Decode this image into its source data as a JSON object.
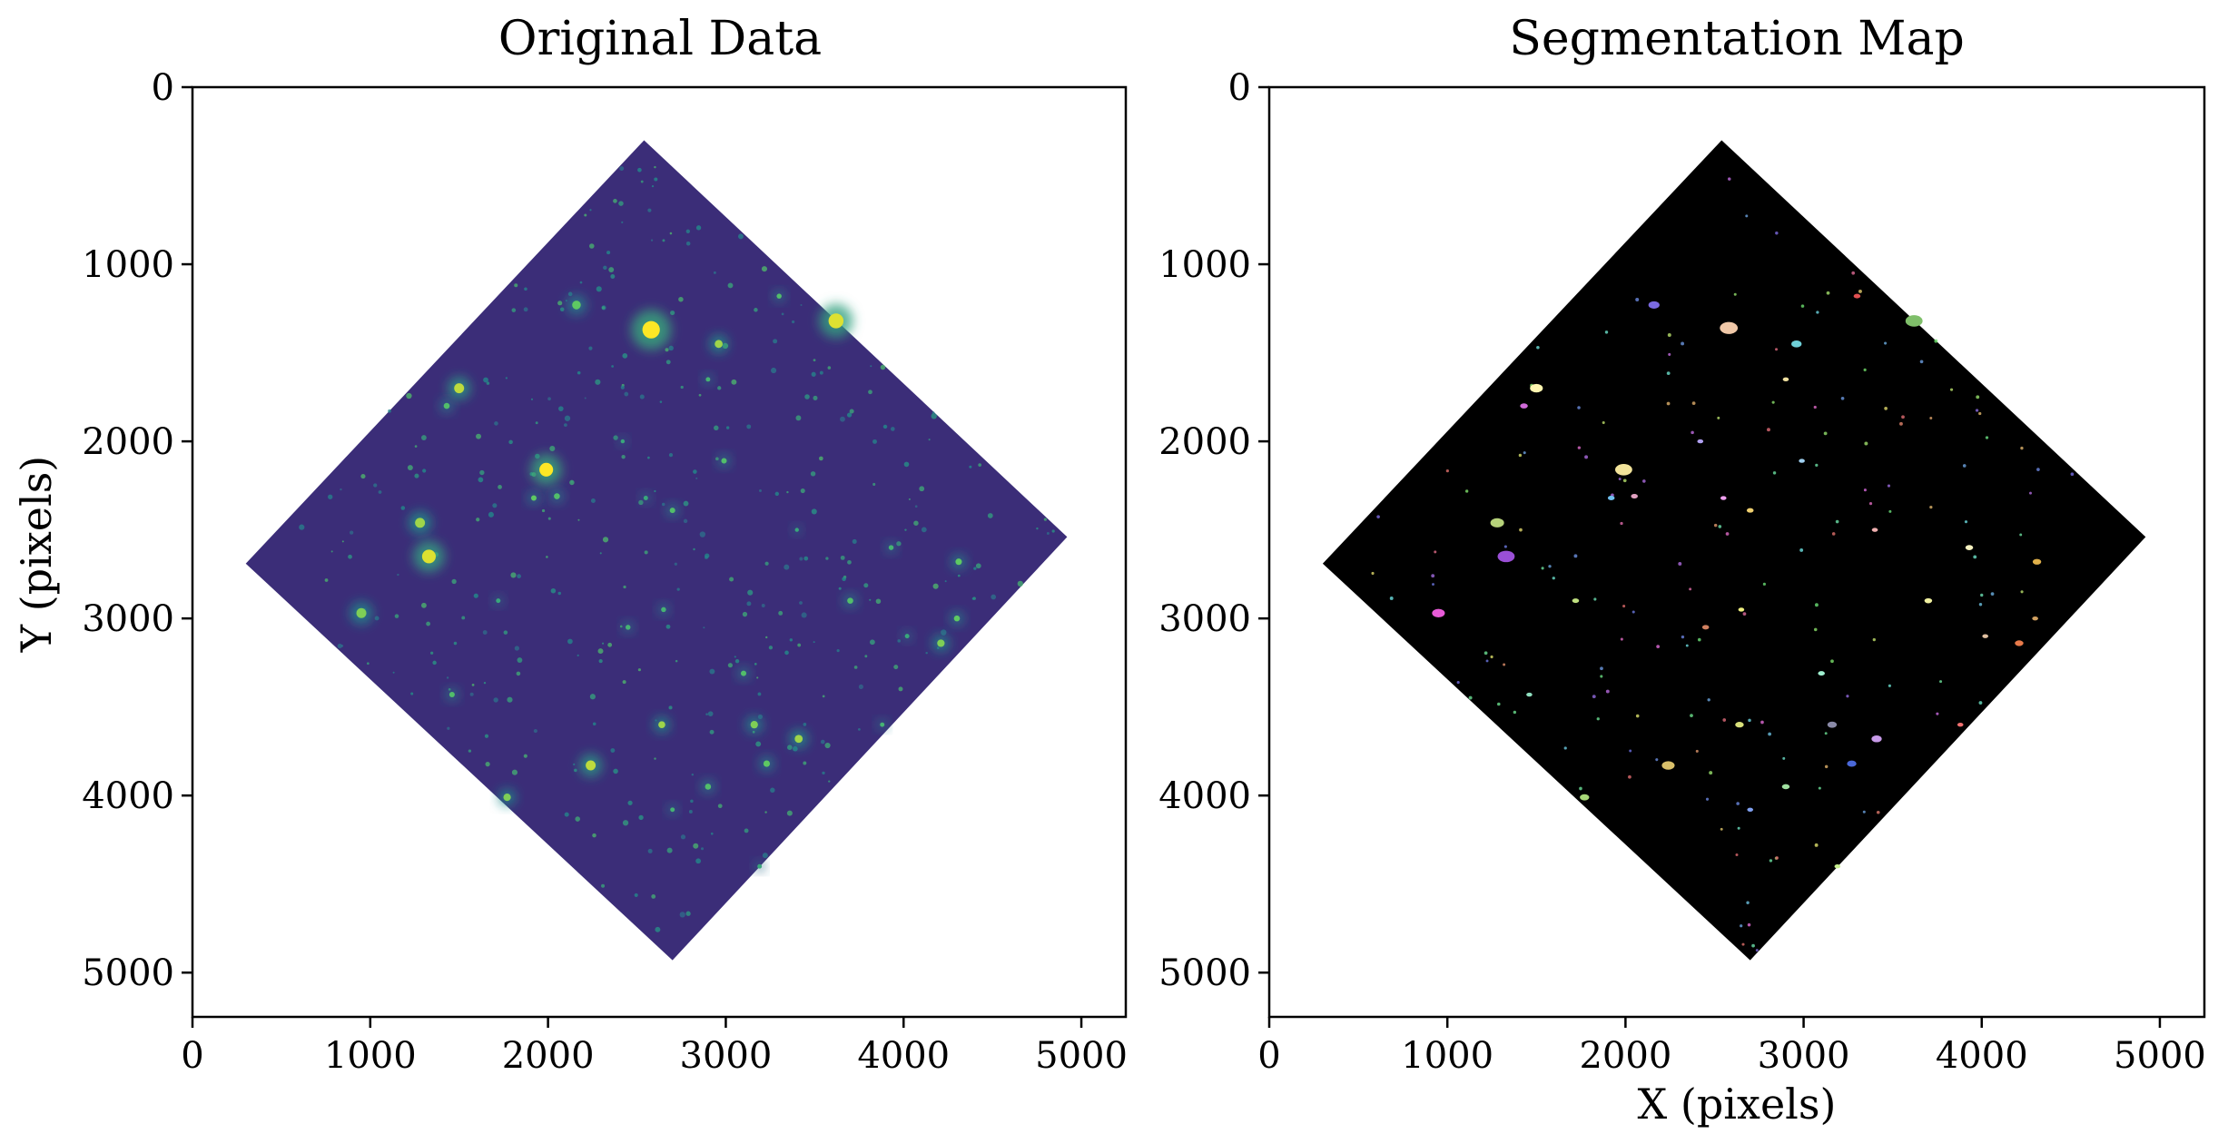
{
  "chart_data": [
    {
      "type": "image",
      "title": "Original Data",
      "xlabel": "",
      "ylabel": "Y (pixels)",
      "xlim": [
        0,
        5250
      ],
      "ylim": [
        5250,
        0
      ],
      "xticks": [
        0,
        1000,
        2000,
        3000,
        4000,
        5000
      ],
      "yticks": [
        0,
        1000,
        2000,
        3000,
        4000,
        5000
      ],
      "colormap": "viridis",
      "background_color": "#3b2d78",
      "footprint": [
        [
          2540,
          300
        ],
        [
          4920,
          2540
        ],
        [
          2700,
          4930
        ],
        [
          300,
          2690
        ]
      ],
      "sources": [
        {
          "x": 2580,
          "y": 1370,
          "r": 70,
          "v": 1.0
        },
        {
          "x": 3620,
          "y": 1320,
          "r": 60,
          "v": 0.95
        },
        {
          "x": 1990,
          "y": 2160,
          "r": 55,
          "v": 1.0
        },
        {
          "x": 1330,
          "y": 2650,
          "r": 55,
          "v": 0.95
        },
        {
          "x": 1280,
          "y": 2460,
          "r": 40,
          "v": 0.85
        },
        {
          "x": 1500,
          "y": 1700,
          "r": 40,
          "v": 0.9
        },
        {
          "x": 2240,
          "y": 3830,
          "r": 40,
          "v": 0.9
        },
        {
          "x": 950,
          "y": 2970,
          "r": 40,
          "v": 0.8
        },
        {
          "x": 2160,
          "y": 1230,
          "r": 35,
          "v": 0.75
        },
        {
          "x": 2960,
          "y": 1450,
          "r": 32,
          "v": 0.85
        },
        {
          "x": 3410,
          "y": 3680,
          "r": 32,
          "v": 0.85
        },
        {
          "x": 3160,
          "y": 3600,
          "r": 30,
          "v": 0.8
        },
        {
          "x": 2640,
          "y": 3600,
          "r": 28,
          "v": 0.85
        },
        {
          "x": 1770,
          "y": 4010,
          "r": 30,
          "v": 0.8
        },
        {
          "x": 4210,
          "y": 3140,
          "r": 30,
          "v": 0.8
        },
        {
          "x": 3230,
          "y": 3820,
          "r": 26,
          "v": 0.75
        },
        {
          "x": 4310,
          "y": 2680,
          "r": 26,
          "v": 0.75
        },
        {
          "x": 4300,
          "y": 3000,
          "r": 24,
          "v": 0.75
        },
        {
          "x": 3700,
          "y": 2900,
          "r": 24,
          "v": 0.7
        },
        {
          "x": 1430,
          "y": 1800,
          "r": 24,
          "v": 0.7
        },
        {
          "x": 2900,
          "y": 3950,
          "r": 24,
          "v": 0.7
        },
        {
          "x": 2050,
          "y": 2310,
          "r": 24,
          "v": 0.7
        },
        {
          "x": 1920,
          "y": 2320,
          "r": 22,
          "v": 0.75
        },
        {
          "x": 1460,
          "y": 3430,
          "r": 22,
          "v": 0.7
        },
        {
          "x": 2990,
          "y": 2110,
          "r": 22,
          "v": 0.7
        },
        {
          "x": 2700,
          "y": 2390,
          "r": 22,
          "v": 0.7
        },
        {
          "x": 3100,
          "y": 3310,
          "r": 22,
          "v": 0.7
        },
        {
          "x": 2650,
          "y": 2950,
          "r": 20,
          "v": 0.65
        },
        {
          "x": 3930,
          "y": 2600,
          "r": 20,
          "v": 0.65
        },
        {
          "x": 2450,
          "y": 3050,
          "r": 20,
          "v": 0.65
        },
        {
          "x": 3300,
          "y": 1180,
          "r": 20,
          "v": 0.7
        },
        {
          "x": 3880,
          "y": 3600,
          "r": 18,
          "v": 0.65
        },
        {
          "x": 2700,
          "y": 4080,
          "r": 18,
          "v": 0.65
        },
        {
          "x": 2900,
          "y": 1650,
          "r": 18,
          "v": 0.65
        },
        {
          "x": 1720,
          "y": 2900,
          "r": 18,
          "v": 0.6
        },
        {
          "x": 4020,
          "y": 3100,
          "r": 18,
          "v": 0.6
        },
        {
          "x": 3190,
          "y": 4400,
          "r": 18,
          "v": 0.6
        },
        {
          "x": 2550,
          "y": 2320,
          "r": 18,
          "v": 0.6
        },
        {
          "x": 2420,
          "y": 2000,
          "r": 16,
          "v": 0.6
        },
        {
          "x": 3400,
          "y": 2500,
          "r": 16,
          "v": 0.6
        }
      ]
    },
    {
      "type": "image",
      "title": "Segmentation Map",
      "xlabel": "X (pixels)",
      "ylabel": "",
      "xlim": [
        0,
        5250
      ],
      "ylim": [
        5250,
        0
      ],
      "xticks": [
        0,
        1000,
        2000,
        3000,
        4000,
        5000
      ],
      "yticks": [
        0,
        1000,
        2000,
        3000,
        4000,
        5000
      ],
      "colormap": "random",
      "background_color": "#000000",
      "footprint": [
        [
          2540,
          300
        ],
        [
          4920,
          2540
        ],
        [
          2700,
          4930
        ],
        [
          300,
          2690
        ]
      ],
      "segments": [
        {
          "x": 2580,
          "y": 1360,
          "r": 42,
          "color": "#f0c8a8"
        },
        {
          "x": 3620,
          "y": 1320,
          "r": 40,
          "color": "#7fbf6a"
        },
        {
          "x": 1990,
          "y": 2160,
          "r": 40,
          "color": "#f2e39a"
        },
        {
          "x": 1330,
          "y": 2650,
          "r": 40,
          "color": "#9a4fd6"
        },
        {
          "x": 1280,
          "y": 2460,
          "r": 32,
          "color": "#b6d27a"
        },
        {
          "x": 1500,
          "y": 1700,
          "r": 30,
          "color": "#fff6b0"
        },
        {
          "x": 2240,
          "y": 3830,
          "r": 30,
          "color": "#d9c06a"
        },
        {
          "x": 950,
          "y": 2970,
          "r": 30,
          "color": "#e85bd8"
        },
        {
          "x": 2160,
          "y": 1230,
          "r": 26,
          "color": "#7a6ae0"
        },
        {
          "x": 2960,
          "y": 1450,
          "r": 24,
          "color": "#6fd0d8"
        },
        {
          "x": 3410,
          "y": 3680,
          "r": 24,
          "color": "#c79ae8"
        },
        {
          "x": 3160,
          "y": 3600,
          "r": 22,
          "color": "#8a8aa8"
        },
        {
          "x": 3270,
          "y": 3820,
          "r": 22,
          "color": "#4a68d8"
        },
        {
          "x": 1770,
          "y": 4010,
          "r": 22,
          "color": "#a8d878"
        },
        {
          "x": 4210,
          "y": 3140,
          "r": 20,
          "color": "#e87a4a"
        },
        {
          "x": 4310,
          "y": 2680,
          "r": 20,
          "color": "#e0b04a"
        },
        {
          "x": 2640,
          "y": 3600,
          "r": 20,
          "color": "#d8e07a"
        },
        {
          "x": 3700,
          "y": 2900,
          "r": 18,
          "color": "#f0f0a0"
        },
        {
          "x": 1430,
          "y": 1800,
          "r": 18,
          "color": "#d06ad8"
        },
        {
          "x": 3930,
          "y": 2600,
          "r": 18,
          "color": "#f6f2c0"
        },
        {
          "x": 2900,
          "y": 3950,
          "r": 18,
          "color": "#a0e0a0"
        },
        {
          "x": 3300,
          "y": 1180,
          "r": 16,
          "color": "#e05050"
        },
        {
          "x": 1720,
          "y": 2900,
          "r": 16,
          "color": "#c0e080"
        },
        {
          "x": 2050,
          "y": 2310,
          "r": 16,
          "color": "#e0a0c0"
        },
        {
          "x": 1920,
          "y": 2320,
          "r": 16,
          "color": "#70c0f0"
        },
        {
          "x": 2700,
          "y": 2390,
          "r": 16,
          "color": "#f0d070"
        },
        {
          "x": 3100,
          "y": 3310,
          "r": 16,
          "color": "#a0f0d0"
        },
        {
          "x": 2450,
          "y": 3050,
          "r": 16,
          "color": "#d08060"
        },
        {
          "x": 3880,
          "y": 3600,
          "r": 14,
          "color": "#f07070"
        },
        {
          "x": 2700,
          "y": 4080,
          "r": 14,
          "color": "#80a0f0"
        },
        {
          "x": 3190,
          "y": 4400,
          "r": 14,
          "color": "#c8f090"
        },
        {
          "x": 2550,
          "y": 2320,
          "r": 14,
          "color": "#f0a0f0"
        },
        {
          "x": 4020,
          "y": 3100,
          "r": 14,
          "color": "#e0c0a0"
        },
        {
          "x": 1460,
          "y": 3430,
          "r": 14,
          "color": "#90e0c0"
        },
        {
          "x": 2650,
          "y": 2950,
          "r": 14,
          "color": "#f0f080"
        },
        {
          "x": 2420,
          "y": 2000,
          "r": 14,
          "color": "#b0a0f0"
        },
        {
          "x": 3400,
          "y": 2500,
          "r": 14,
          "color": "#f0b0b0"
        },
        {
          "x": 2990,
          "y": 2110,
          "r": 14,
          "color": "#a0d0f0"
        },
        {
          "x": 2900,
          "y": 1650,
          "r": 14,
          "color": "#f0e0a0"
        },
        {
          "x": 4300,
          "y": 3000,
          "r": 14,
          "color": "#d0a060"
        }
      ]
    }
  ]
}
